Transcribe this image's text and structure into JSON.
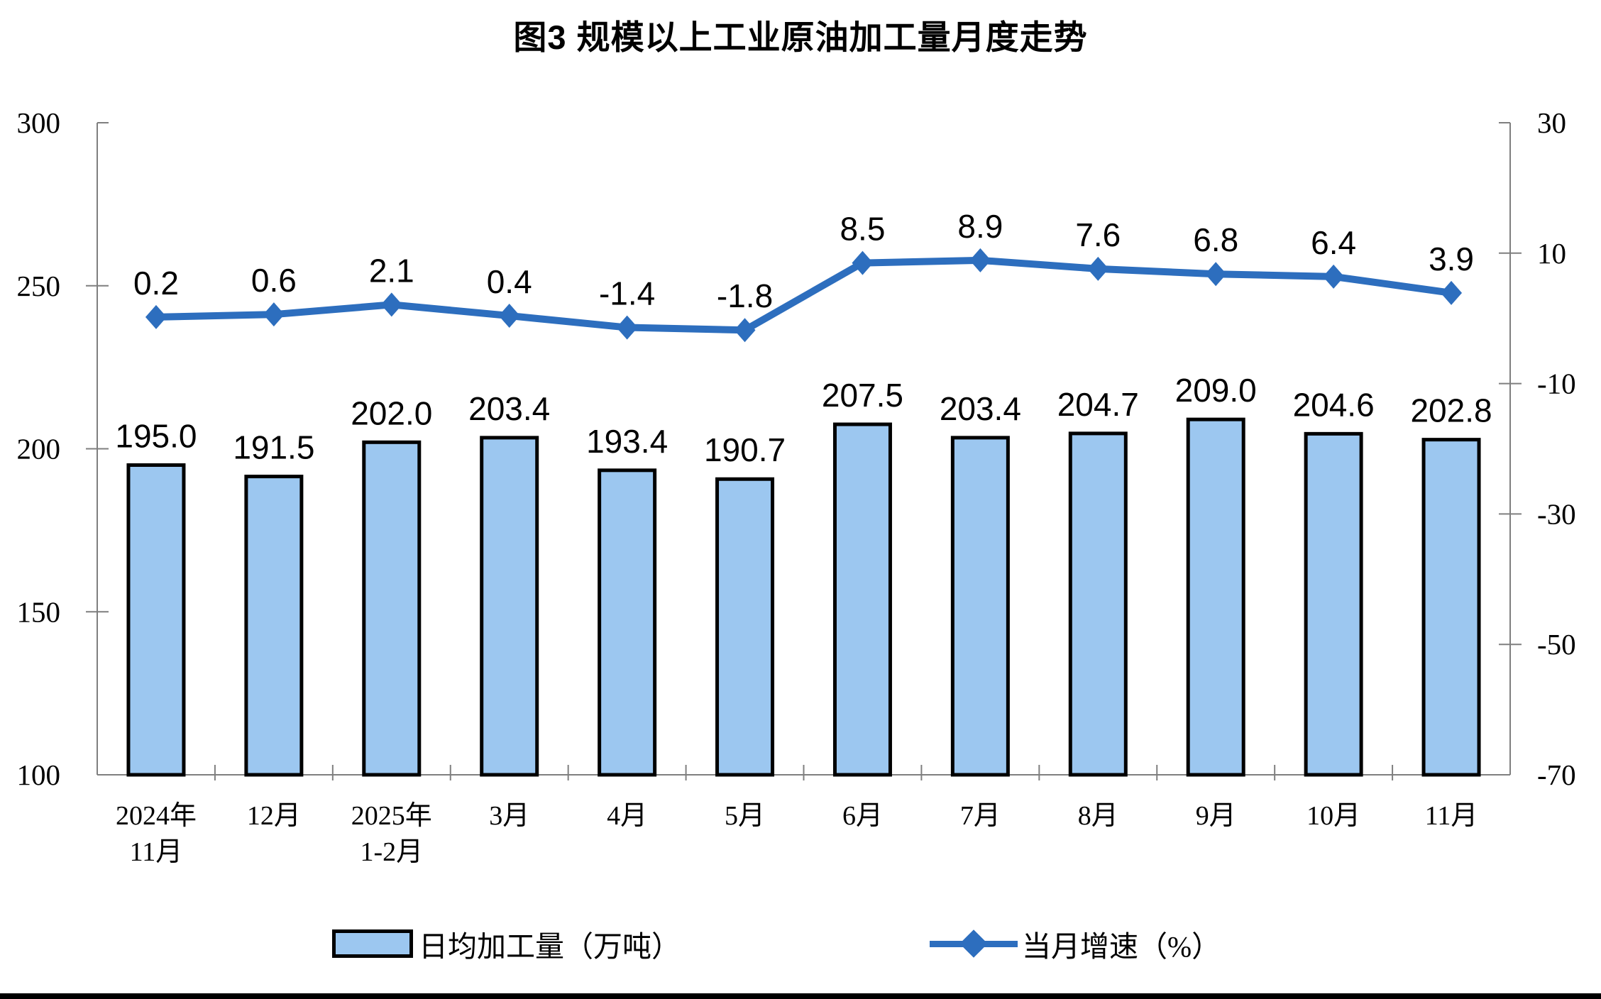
{
  "title": "图3 规模以上工业原油加工量月度走势",
  "colors": {
    "bar_fill": "#9CC7F0",
    "bar_border": "#000000",
    "line": "#2D6EBE",
    "axis": "#7F7F7F",
    "text": "#000000",
    "bottom_rule": "#000000"
  },
  "chart_data": {
    "type": "bar+line",
    "title": "图3 规模以上工业原油加工量月度走势",
    "categories": [
      "2024年\n11月",
      "12月",
      "2025年\n1-2月",
      "3月",
      "4月",
      "5月",
      "6月",
      "7月",
      "8月",
      "9月",
      "10月",
      "11月"
    ],
    "series": [
      {
        "name": "日均加工量（万吨）",
        "type": "bar",
        "axis": "left",
        "color": "#9CC7F0",
        "border_color": "#000000",
        "values": [
          195.0,
          191.5,
          202.0,
          203.4,
          193.4,
          190.7,
          207.5,
          203.4,
          204.7,
          209.0,
          204.6,
          202.8
        ]
      },
      {
        "name": "当月增速（%）",
        "type": "line",
        "axis": "right",
        "color": "#2D6EBE",
        "marker": "diamond",
        "values": [
          0.2,
          0.6,
          2.1,
          0.4,
          -1.4,
          -1.8,
          8.5,
          8.9,
          7.6,
          6.8,
          6.4,
          3.9
        ]
      }
    ],
    "left_axis": {
      "min": 100,
      "max": 300,
      "ticks": [
        100,
        150,
        200,
        250,
        300
      ]
    },
    "right_axis": {
      "min": -70,
      "max": 30,
      "ticks": [
        -70,
        -50,
        -30,
        -10,
        10,
        30
      ]
    },
    "grid": false,
    "legend_position": "bottom",
    "data_labels": true,
    "label_decimals": 1
  }
}
